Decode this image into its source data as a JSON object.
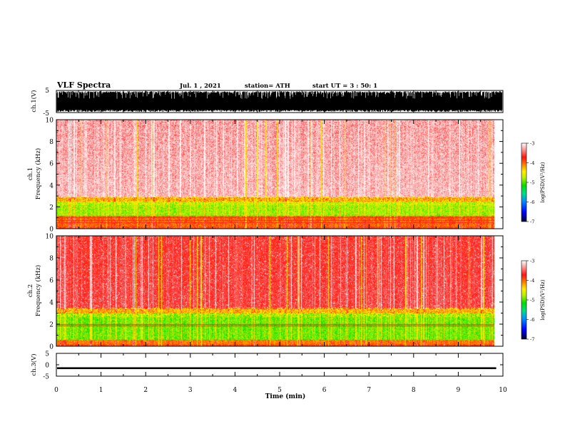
{
  "header": {
    "title": "VLF Spectra",
    "date": "Jul. 1 , 2021",
    "station": "station= ATH",
    "start": "start UT = 3 : 50: 1"
  },
  "colors": {
    "cmap": [
      "#000040",
      "#0000ff",
      "#0090ff",
      "#00e0a0",
      "#00dd00",
      "#aaee00",
      "#ffff00",
      "#ff9900",
      "#ff2020",
      "#ffc0c0",
      "#ffffff"
    ],
    "trace": "#000000"
  },
  "chart_data": [
    {
      "type": "line",
      "name": "ch1-waveform",
      "ylabel": "ch.1(V)",
      "ylim": [
        -5,
        5
      ],
      "yticks": [
        "5",
        "-5"
      ],
      "x_range_min": [
        0,
        10
      ],
      "envelope_description": "dense bursts spanning nearly full +/-5 V range"
    },
    {
      "type": "heatmap",
      "name": "ch1-spectrogram",
      "ylabel": "ch.1\nFrequency (kHz)",
      "ylim": [
        0,
        10
      ],
      "yticks": [
        "0",
        "2",
        "4",
        "6",
        "8",
        "10"
      ],
      "x_range_min": [
        0,
        9.85
      ],
      "colorbar": {
        "label": "log(PSD)(V²/Hz)",
        "range": [
          -7,
          -3
        ],
        "ticks": [
          "-3",
          "-4",
          "-5",
          "-6",
          "-7"
        ]
      },
      "band_boundaries_khz": {
        "green_top": 2.5,
        "green_bottom": 1.2,
        "orange_bottom": 0.2
      },
      "lines_khz": [
        1.05,
        0.8,
        0.6
      ]
    },
    {
      "type": "heatmap",
      "name": "ch2-spectrogram",
      "ylabel": "ch.2\nFrequency (kHz)",
      "ylim": [
        0,
        10
      ],
      "yticks": [
        "0",
        "2",
        "4",
        "6",
        "8",
        "10"
      ],
      "x_range_min": [
        0,
        9.85
      ],
      "colorbar": {
        "label": "log(PSD)(V²/Hz)",
        "range": [
          -7,
          -3
        ],
        "ticks": [
          "-3",
          "-4",
          "-5",
          "-6",
          "-7"
        ]
      },
      "band_boundaries_khz": {
        "green_top": 3.0,
        "green_bottom": 0.6,
        "orange_bottom": 0.2
      },
      "lines_khz": [
        2.0,
        1.85
      ]
    },
    {
      "type": "line",
      "name": "ch3-waveform",
      "ylabel": "ch.3(V)",
      "ylim": [
        -5,
        5
      ],
      "yticks": [
        "5",
        "0",
        "-5"
      ],
      "x_range_min": [
        0,
        10
      ],
      "level_volts": -1.5,
      "band_halfwidth_volts": 0.4
    }
  ],
  "xaxis": {
    "label": "Time (min)",
    "range": [
      0,
      10
    ],
    "ticks": [
      "0",
      "1",
      "2",
      "3",
      "4",
      "5",
      "6",
      "7",
      "8",
      "9",
      "10"
    ]
  }
}
